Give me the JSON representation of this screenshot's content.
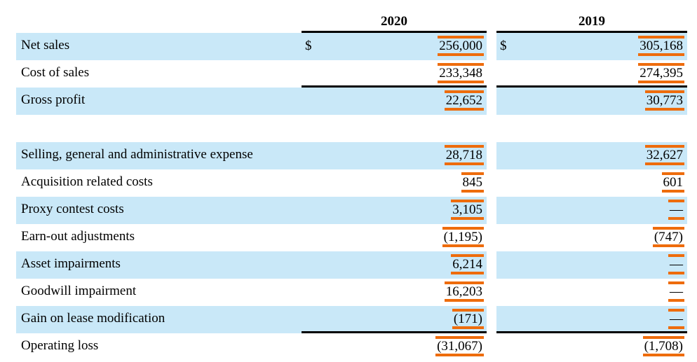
{
  "table": {
    "column_headers": [
      "2020",
      "2019"
    ],
    "currency_symbol": "$",
    "rows": [
      {
        "label": "Net sales",
        "d2020": "$",
        "v2020": "256,000",
        "d2019": "$",
        "v2019": "305,168"
      },
      {
        "label": "Cost of sales",
        "v2020": "233,348",
        "v2019": "274,395"
      },
      {
        "label": "Gross profit",
        "v2020": "22,652",
        "v2019": "30,773"
      },
      {
        "label": "",
        "v2020": "",
        "v2019": ""
      },
      {
        "label": "Selling, general and administrative expense",
        "v2020": "28,718",
        "v2019": "32,627"
      },
      {
        "label": "Acquisition related costs",
        "v2020": "845",
        "v2019": "601"
      },
      {
        "label": "Proxy contest costs",
        "v2020": "3,105",
        "v2019": "—"
      },
      {
        "label": "Earn-out adjustments",
        "v2020": "(1,195)",
        "v2019": "(747)"
      },
      {
        "label": "Asset impairments",
        "v2020": "6,214",
        "v2019": "—"
      },
      {
        "label": "Goodwill impairment",
        "v2020": "16,203",
        "v2019": "—"
      },
      {
        "label": "Gain on lease modification",
        "v2020": "(171)",
        "v2019": "—"
      },
      {
        "label": "Operating loss",
        "v2020": "(31,067)",
        "v2019": "(1,708)"
      }
    ],
    "colors": {
      "row_highlight": "#C9E8F8",
      "annotation": "#EE6C0C",
      "rule": "#000000",
      "text": "#000000"
    }
  }
}
